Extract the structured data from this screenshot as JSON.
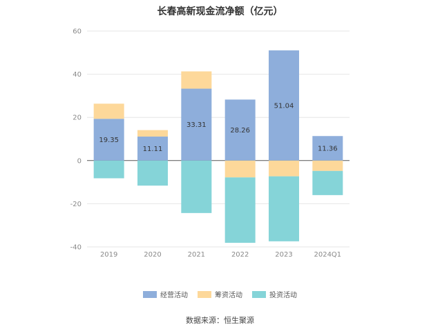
{
  "chart_data": {
    "type": "bar",
    "stacked": true,
    "title": "长春高新现金流净额（亿元）",
    "categories": [
      "2019",
      "2020",
      "2021",
      "2022",
      "2023",
      "2024Q1"
    ],
    "series": [
      {
        "name": "经营活动",
        "color": "#8eaedb",
        "values": [
          19.35,
          11.11,
          33.31,
          28.26,
          51.04,
          11.36
        ]
      },
      {
        "name": "筹资活动",
        "color": "#fdd89a",
        "values": [
          7.0,
          3.0,
          8.0,
          -7.8,
          -7.3,
          -4.8
        ]
      },
      {
        "name": "投资活动",
        "color": "#85d4d8",
        "values": [
          -8.2,
          -11.6,
          -24.3,
          -30.3,
          -30.1,
          -11.2
        ]
      }
    ],
    "data_labels": [
      "19.35",
      "11.11",
      "33.31",
      "28.26",
      "51.04",
      "11.36"
    ],
    "ylim": [
      -40,
      60
    ],
    "yticks": [
      -40,
      -20,
      0,
      20,
      40,
      60
    ],
    "grid": true,
    "legend_position": "bottom"
  },
  "source_text": "数据来源：恒生聚源"
}
